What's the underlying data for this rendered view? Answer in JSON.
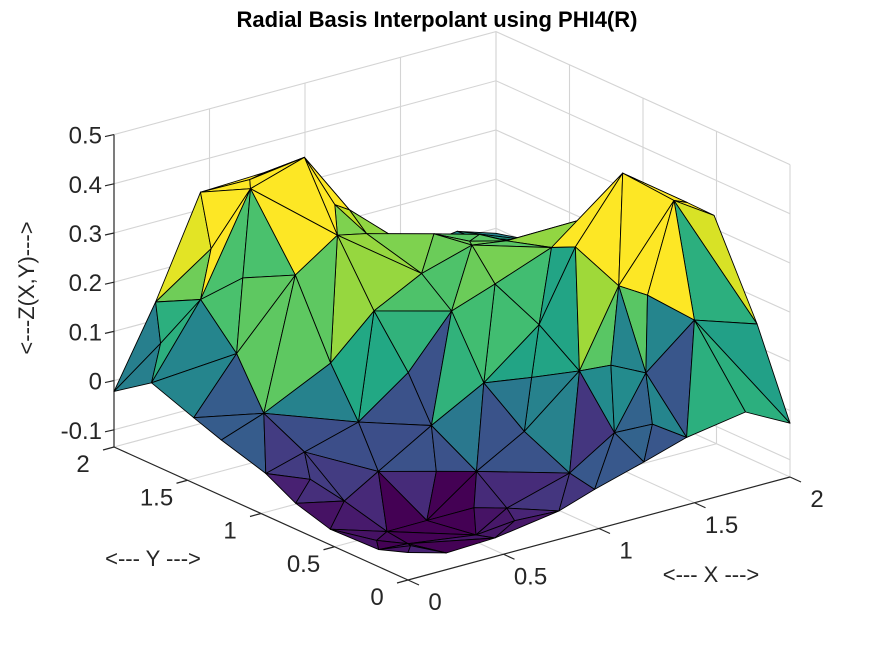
{
  "chart_data": {
    "type": "surface",
    "render": "trisurf-flat-shaded",
    "title": "Radial Basis Interpolant using PHI4(R)",
    "xlabel": "<--- X --->",
    "ylabel": "<--- Y --->",
    "zlabel": "<---Z(X,Y)--->",
    "x_ticks": [
      0,
      0.5,
      1,
      1.5,
      2
    ],
    "y_ticks": [
      0,
      0.5,
      1,
      1.5,
      2
    ],
    "z_ticks": [
      -0.1,
      0,
      0.1,
      0.2,
      0.3,
      0.4,
      0.5
    ],
    "x_range": [
      0,
      2
    ],
    "y_range": [
      0,
      2
    ],
    "z_range": [
      -0.135,
      0.5
    ],
    "grid": true,
    "legend": false,
    "view": {
      "azimuth": -37.5,
      "elevation": 30,
      "projection": "orthographic"
    },
    "colormap": {
      "name": "viridis",
      "stops": [
        "#440154",
        "#482475",
        "#414487",
        "#355f8d",
        "#2a788e",
        "#21918c",
        "#22a884",
        "#44bf70",
        "#7ad151",
        "#bddf26",
        "#fde725"
      ]
    },
    "color_range": [
      -0.126,
      0.355
    ],
    "surface_grid": {
      "x": [
        0,
        0.25,
        0.5,
        0.75,
        1,
        1.25,
        1.5,
        1.75,
        2
      ],
      "y": [
        0,
        0.25,
        0.5,
        0.75,
        1,
        1.25,
        1.5,
        1.75,
        2
      ],
      "z": [
        [
          -0.073,
          -0.094,
          -0.098,
          -0.081,
          -0.054,
          -0.026,
          0.003,
          0.027,
          -0.02
        ],
        [
          -0.094,
          -0.123,
          -0.126,
          -0.095,
          -0.046,
          0.011,
          0.097,
          0.181,
          0.14
        ],
        [
          -0.098,
          -0.126,
          -0.121,
          -0.074,
          -0.005,
          0.082,
          0.229,
          0.377,
          0.331
        ],
        [
          -0.081,
          -0.095,
          -0.074,
          -0.011,
          0.071,
          0.156,
          0.282,
          0.398,
          0.334
        ],
        [
          -0.054,
          -0.046,
          -0.005,
          0.071,
          0.179,
          0.212,
          0.256,
          0.27,
          0.196
        ],
        [
          -0.026,
          0.011,
          0.082,
          0.156,
          0.217,
          0.241,
          0.232,
          0.187,
          0.112
        ],
        [
          0.003,
          0.097,
          0.229,
          0.282,
          0.256,
          0.232,
          0.211,
          0.168,
          0.105
        ],
        [
          0.027,
          0.181,
          0.377,
          0.398,
          0.27,
          0.187,
          0.168,
          0.152,
          0.111
        ],
        [
          -0.02,
          0.14,
          0.331,
          0.334,
          0.196,
          0.112,
          0.105,
          0.111,
          0.091
        ]
      ]
    },
    "styles": {
      "background": "#ffffff",
      "edge_color": "#000000",
      "grid_color": "#d4d4d4",
      "axis_color": "#262626",
      "tick_label_color": "#262626",
      "title_color": "#000000"
    }
  }
}
